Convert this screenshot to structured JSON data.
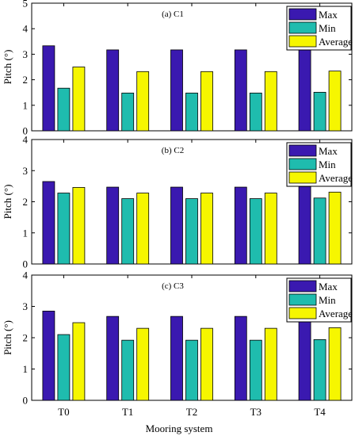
{
  "chart_data": [
    {
      "type": "bar",
      "title": "(a) C1",
      "ylabel": "Pitch (°)",
      "ylim": [
        0,
        5
      ],
      "yticks": [
        "0",
        "1",
        "2",
        "3",
        "4",
        "5"
      ],
      "categories": [
        "T0",
        "T1",
        "T2",
        "T3",
        "T4"
      ],
      "series": [
        {
          "name": "Max",
          "color": "#3a19b0",
          "values": [
            3.33,
            3.17,
            3.17,
            3.17,
            3.19
          ]
        },
        {
          "name": "Min",
          "color": "#1fbcae",
          "values": [
            1.67,
            1.48,
            1.48,
            1.48,
            1.51
          ]
        },
        {
          "name": "Average",
          "color": "#f6f600",
          "values": [
            2.5,
            2.32,
            2.32,
            2.32,
            2.34
          ]
        }
      ],
      "legend": "top-right",
      "grid": false
    },
    {
      "type": "bar",
      "title": "(b) C2",
      "ylabel": "Pitch (°)",
      "ylim": [
        0,
        4
      ],
      "yticks": [
        "0",
        "1",
        "2",
        "3",
        "4"
      ],
      "categories": [
        "T0",
        "T1",
        "T2",
        "T3",
        "T4"
      ],
      "series": [
        {
          "name": "Max",
          "color": "#3a19b0",
          "values": [
            2.65,
            2.47,
            2.47,
            2.47,
            2.49
          ]
        },
        {
          "name": "Min",
          "color": "#1fbcae",
          "values": [
            2.28,
            2.1,
            2.1,
            2.1,
            2.12
          ]
        },
        {
          "name": "Average",
          "color": "#f6f600",
          "values": [
            2.46,
            2.28,
            2.28,
            2.28,
            2.31
          ]
        }
      ],
      "legend": "top-right",
      "grid": false
    },
    {
      "type": "bar",
      "title": "(c) C3",
      "ylabel": "Pitch (°)",
      "ylim": [
        0,
        4
      ],
      "yticks": [
        "0",
        "1",
        "2",
        "3",
        "4"
      ],
      "xlabel": "Mooring system",
      "categories": [
        "T0",
        "T1",
        "T2",
        "T3",
        "T4"
      ],
      "series": [
        {
          "name": "Max",
          "color": "#3a19b0",
          "values": [
            2.85,
            2.68,
            2.68,
            2.68,
            2.71
          ]
        },
        {
          "name": "Min",
          "color": "#1fbcae",
          "values": [
            2.1,
            1.92,
            1.92,
            1.92,
            1.94
          ]
        },
        {
          "name": "Average",
          "color": "#f6f600",
          "values": [
            2.48,
            2.3,
            2.3,
            2.3,
            2.32
          ]
        }
      ],
      "legend": "top-right",
      "grid": false
    }
  ]
}
